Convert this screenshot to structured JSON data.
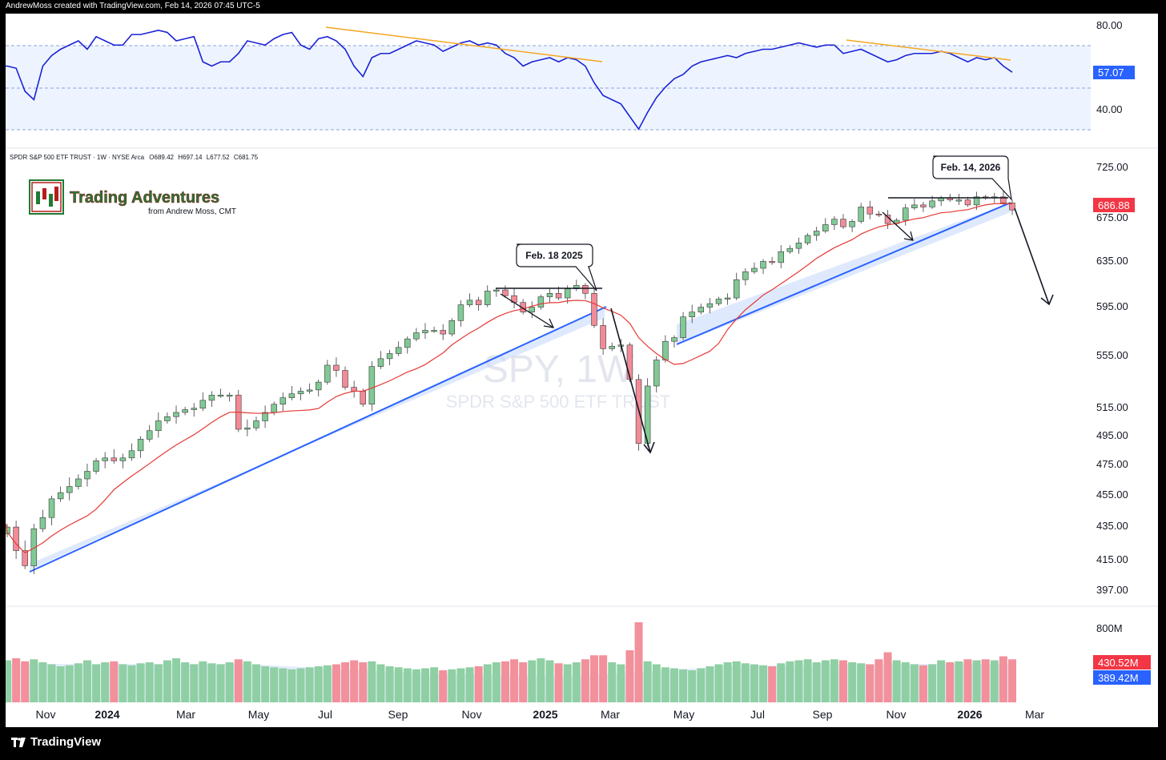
{
  "header": {
    "created_by": "AndrewMoss created with TradingView.com, Feb 14, 2026 07:45 UTC-5"
  },
  "footer": {
    "brand": "TradingView"
  },
  "symbol": {
    "legend": "SPDR S&P 500 ETF TRUST · 1W · NYSE Arca",
    "open": "O689.42",
    "high": "H697.14",
    "low": "L677.52",
    "close": "C681.75",
    "watermark_symbol": "SPY, 1W",
    "watermark_name": "SPDR S&P 500 ETF TRUST"
  },
  "logo": {
    "title": "Trading Adventures",
    "subtitle": "from Andrew Moss, CMT"
  },
  "annotations": {
    "callout_2025": "Feb. 18 2025",
    "callout_2026": "Feb. 14, 2026"
  },
  "price_badge": "686.88",
  "rsi_badge": "57.07",
  "vol_badges": {
    "red": "430.52M",
    "blue": "389.42M"
  },
  "colors": {
    "up": "#81c995",
    "down": "#f28b98",
    "ma": "#e53935",
    "trend": "#2962ff",
    "rsi": "#1a23d6",
    "divergence": "#f5a623",
    "badge_red": "#f23645",
    "badge_blue": "#2962ff"
  },
  "chart_data": {
    "type": "candlestick",
    "price_axis_ticks": [
      "725.00",
      "675.00",
      "635.00",
      "595.00",
      "555.00",
      "515.00",
      "495.00",
      "475.00",
      "455.00",
      "435.00",
      "415.00",
      "397.00"
    ],
    "rsi_axis_ticks": [
      "80.00",
      "40.00"
    ],
    "volume_axis_ticks": [
      "800M"
    ],
    "time_axis_labels": [
      "Nov",
      "2024",
      "Mar",
      "May",
      "Jul",
      "Sep",
      "Nov",
      "2025",
      "Mar",
      "May",
      "Jul",
      "Sep",
      "Nov",
      "2026",
      "Mar"
    ],
    "closes": [
      434,
      420,
      411,
      433,
      440,
      452,
      456,
      460,
      465,
      470,
      477,
      479,
      477,
      479,
      484,
      492,
      498,
      505,
      508,
      511,
      513,
      514,
      520,
      524,
      524,
      524,
      499,
      500,
      505,
      511,
      517,
      522,
      525,
      527,
      528,
      534,
      547,
      543,
      530,
      527,
      517,
      546,
      552,
      556,
      561,
      568,
      573,
      575,
      575,
      572,
      583,
      596,
      600,
      596,
      608,
      609,
      604,
      598,
      590,
      594,
      603,
      606,
      602,
      610,
      613,
      606,
      579,
      560,
      562,
      563,
      536,
      489,
      531,
      551,
      566,
      569,
      586,
      590,
      594,
      597,
      601,
      602,
      618,
      625,
      628,
      634,
      633,
      643,
      646,
      651,
      658,
      662,
      668,
      673,
      666,
      671,
      685,
      678,
      677,
      669,
      672,
      684,
      687,
      685,
      691,
      694,
      692,
      692,
      687,
      695,
      694,
      695,
      689,
      682
    ],
    "rsi_values": [
      60,
      59,
      48,
      44,
      60,
      65,
      68,
      70,
      72,
      68,
      74,
      72,
      70,
      70,
      75,
      75,
      76,
      77,
      76,
      72,
      73,
      74,
      62,
      60,
      62,
      62,
      66,
      72,
      71,
      70,
      73,
      75,
      76,
      70,
      68,
      73,
      74,
      72,
      68,
      60,
      55,
      64,
      66,
      66,
      68,
      70,
      72,
      71,
      70,
      67,
      69,
      71,
      72,
      70,
      71,
      70,
      66,
      64,
      60,
      62,
      63,
      64,
      62,
      64,
      63,
      60,
      52,
      46,
      44,
      42,
      36,
      30,
      38,
      45,
      50,
      54,
      56,
      60,
      62,
      63,
      64,
      65,
      64,
      66,
      67,
      68,
      68,
      69,
      70,
      71,
      70,
      69,
      70,
      70,
      66,
      67,
      68,
      66,
      64,
      62,
      63,
      65,
      66,
      66,
      66,
      67,
      66,
      64,
      62,
      64,
      63,
      64,
      60,
      57.07
    ],
    "volume_millions": [
      420,
      440,
      410,
      430,
      400,
      380,
      360,
      370,
      390,
      420,
      380,
      400,
      410,
      380,
      370,
      390,
      400,
      380,
      420,
      440,
      400,
      380,
      410,
      390,
      380,
      400,
      430,
      410,
      380,
      360,
      350,
      340,
      330,
      340,
      350,
      360,
      370,
      380,
      400,
      420,
      400,
      410,
      380,
      360,
      350,
      340,
      330,
      340,
      350,
      320,
      330,
      340,
      350,
      360,
      380,
      400,
      410,
      430,
      400,
      420,
      440,
      420,
      390,
      380,
      400,
      430,
      470,
      470,
      400,
      380,
      520,
      800,
      410,
      380,
      350,
      340,
      330,
      320,
      340,
      360,
      380,
      400,
      410,
      390,
      380,
      370,
      360,
      390,
      410,
      420,
      430,
      400,
      420,
      430,
      420,
      400,
      390,
      380,
      430,
      500,
      420,
      400,
      380,
      370,
      380,
      420,
      400,
      410,
      430,
      420,
      430,
      420,
      460,
      430
    ],
    "ma_latest": 686.88,
    "ylim": [
      390,
      735
    ]
  }
}
